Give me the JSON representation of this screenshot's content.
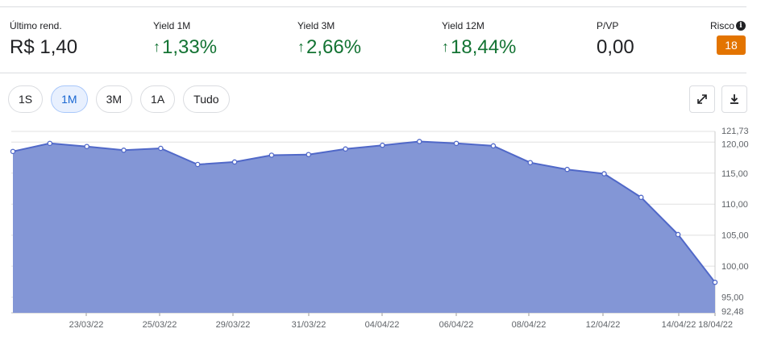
{
  "metrics": [
    {
      "label": "Último rend.",
      "value": "R$ 1,40",
      "up": false
    },
    {
      "label": "Yield 1M",
      "value": "1,33%",
      "up": true
    },
    {
      "label": "Yield 3M",
      "value": "2,66%",
      "up": true
    },
    {
      "label": "Yield 12M",
      "value": "18,44%",
      "up": true
    },
    {
      "label": "P/VP",
      "value": "0,00",
      "up": false
    }
  ],
  "risk": {
    "label": "Risco",
    "value": "18",
    "color": "#e37400"
  },
  "ranges": [
    {
      "label": "1S",
      "active": false
    },
    {
      "label": "1M",
      "active": true
    },
    {
      "label": "3M",
      "active": false
    },
    {
      "label": "1A",
      "active": false
    },
    {
      "label": "Tudo",
      "active": false
    }
  ],
  "icons": {
    "info": "info-icon",
    "up_arrow": "arrow-up-icon",
    "expand": "expand-icon",
    "download": "download-icon"
  },
  "colors": {
    "fill": "#8396d6",
    "line": "#5068c8",
    "positive": "#137333",
    "active_range": "#1967d2"
  },
  "chart_data": {
    "type": "area",
    "x_tick_labels": [
      "23/03/22",
      "25/03/22",
      "29/03/22",
      "31/03/22",
      "04/04/22",
      "06/04/22",
      "08/04/22",
      "12/04/22",
      "14/04/22",
      "18/04/22"
    ],
    "y_tick_labels": [
      "121,73",
      "120,00",
      "115,00",
      "110,00",
      "105,00",
      "100,00",
      "95,00",
      "92,48"
    ],
    "y_ticks": [
      121.73,
      120,
      115,
      110,
      105,
      100,
      95,
      92.48
    ],
    "ylim": [
      92.48,
      121.73
    ],
    "series": [
      {
        "values": [
          118.5,
          119.8,
          119.3,
          118.7,
          119.0,
          116.4,
          116.8,
          117.9,
          118.0,
          118.9,
          119.5,
          120.1,
          119.8,
          119.4,
          116.7,
          115.6,
          114.9,
          111.1,
          105.1,
          97.4
        ]
      }
    ],
    "grid": true,
    "legend": false
  }
}
